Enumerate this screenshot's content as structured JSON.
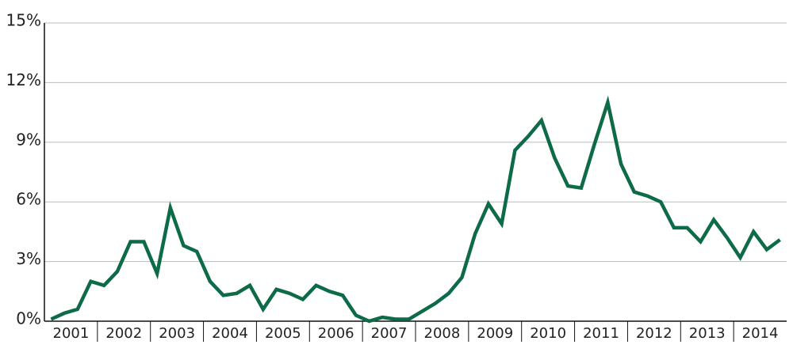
{
  "chart_data": {
    "type": "line",
    "categories": [
      "2001",
      null,
      null,
      null,
      "2002",
      null,
      null,
      null,
      "2003",
      null,
      null,
      null,
      "2004",
      null,
      null,
      null,
      "2005",
      null,
      null,
      null,
      "2006",
      null,
      null,
      null,
      "2007",
      null,
      null,
      null,
      "2008",
      null,
      null,
      null,
      "2009",
      null,
      null,
      null,
      "2010",
      null,
      null,
      null,
      "2011",
      null,
      null,
      null,
      "2012",
      null,
      null,
      null,
      "2013",
      null,
      null,
      null,
      "2014",
      null,
      null,
      null
    ],
    "values": [
      0.1,
      0.4,
      0.6,
      2.0,
      1.8,
      2.5,
      4.0,
      4.0,
      2.4,
      5.7,
      3.8,
      3.5,
      2.0,
      1.3,
      1.4,
      1.8,
      0.6,
      1.6,
      1.4,
      1.1,
      1.8,
      1.5,
      1.3,
      0.3,
      0.0,
      0.2,
      0.1,
      0.1,
      0.5,
      0.9,
      1.4,
      2.2,
      4.4,
      5.9,
      4.9,
      8.6,
      9.3,
      10.1,
      8.2,
      6.8,
      6.7,
      8.9,
      11.0,
      7.9,
      6.5,
      6.3,
      6.0,
      4.7,
      4.7,
      4.0,
      5.1,
      4.2,
      3.2,
      4.5,
      3.6,
      4.1
    ],
    "color": "#0d6b47",
    "ylim": [
      0,
      15
    ],
    "yticks": [
      {
        "value": 0,
        "label": "0%"
      },
      {
        "value": 3,
        "label": "3%"
      },
      {
        "value": 6,
        "label": "6%"
      },
      {
        "value": 9,
        "label": "9%"
      },
      {
        "value": 12,
        "label": "12%"
      },
      {
        "value": 15,
        "label": "15%"
      }
    ],
    "grid": true
  }
}
